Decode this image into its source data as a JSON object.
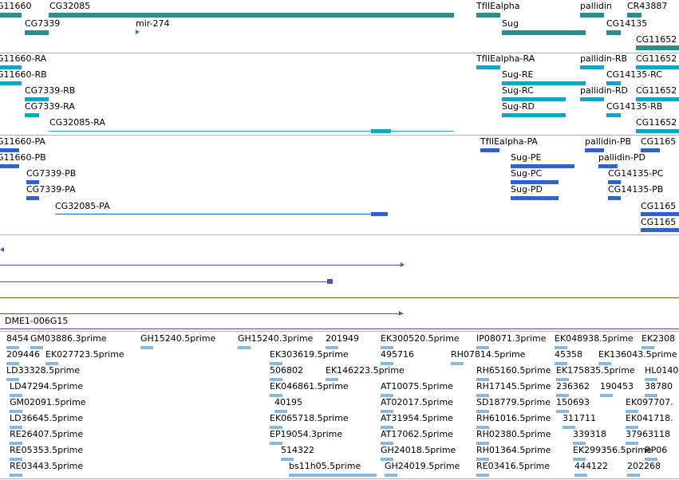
{
  "tracks": {
    "genes": [
      "G11660",
      "CG32085",
      "TfIIEalpha",
      "pallidin",
      "CR43887",
      "CG7339",
      "mir-274",
      "Sug",
      "CG14135",
      "CG11652"
    ],
    "transcripts_a": [
      "G11660-RA",
      "TfIIEalpha-RA",
      "pallidin-RB",
      "CG11652",
      "G11660-RB",
      "Sug-RE",
      "CG14135-RC",
      "CG7339-RB",
      "Sug-RC",
      "pallidin-RD",
      "CG11652",
      "CG7339-RA",
      "Sug-RD",
      "CG14135-RB",
      "CG32085-RA",
      "CG11652"
    ],
    "transcripts_b": [
      "G11660-PA",
      "TfIIEalpha-PA",
      "pallidin-PB",
      "CG1165",
      "G11660-PB",
      "pallidin-PD",
      "CG7339-PB",
      "Sug-PE",
      "CG14135-PC",
      "CG7339-PA",
      "Sug-PC",
      "CG14135-PB",
      "Sug-PD",
      "CG32085-PA",
      "CG1165",
      "CG1165"
    ],
    "clones": [
      "DME1-006G15"
    ],
    "ests": [
      "8454",
      "GM03886.3prime",
      "GH15240.5prime",
      "GH15240.3prime",
      "201949",
      "EK300520.5prime",
      "IP08071.3prime",
      "EK048938.5prime",
      "EK2308",
      "209446",
      "EK027723.5prime",
      "EK303619.5prime",
      "495716",
      "RH07814.5prime",
      "45358",
      "EK136043.5prime",
      "LD33328.5prime",
      "506802",
      "EK146223.5prime",
      "RH65160.5prime",
      "EK175835.5prime",
      "HL0140",
      "LD47294.5prime",
      "EK046861.5prime",
      "AT10075.5prime",
      "RH17145.5prime",
      "236362",
      "190453",
      "38780",
      "GM02091.5prime",
      "40195",
      "AT02017.5prime",
      "SD18779.5prime",
      "150693",
      "EK097707.",
      "LD36645.5prime",
      "EK065718.5prime",
      "AT31954.5prime",
      "RH61016.5prime",
      "311711",
      "EK041718.",
      "RE26407.5prime",
      "EP19054.3prime",
      "AT17062.5prime",
      "RH02380.5prime",
      "339318",
      "37963118",
      "RE05353.5prime",
      "514322",
      "GH24018.5prime",
      "RH01364.5prime",
      "EK299356.5prime",
      "RP06",
      "RE03443.5prime",
      "bs11h05.5prime",
      "GH24019.5prime",
      "RE03416.5prime",
      "444122",
      "202268"
    ]
  }
}
